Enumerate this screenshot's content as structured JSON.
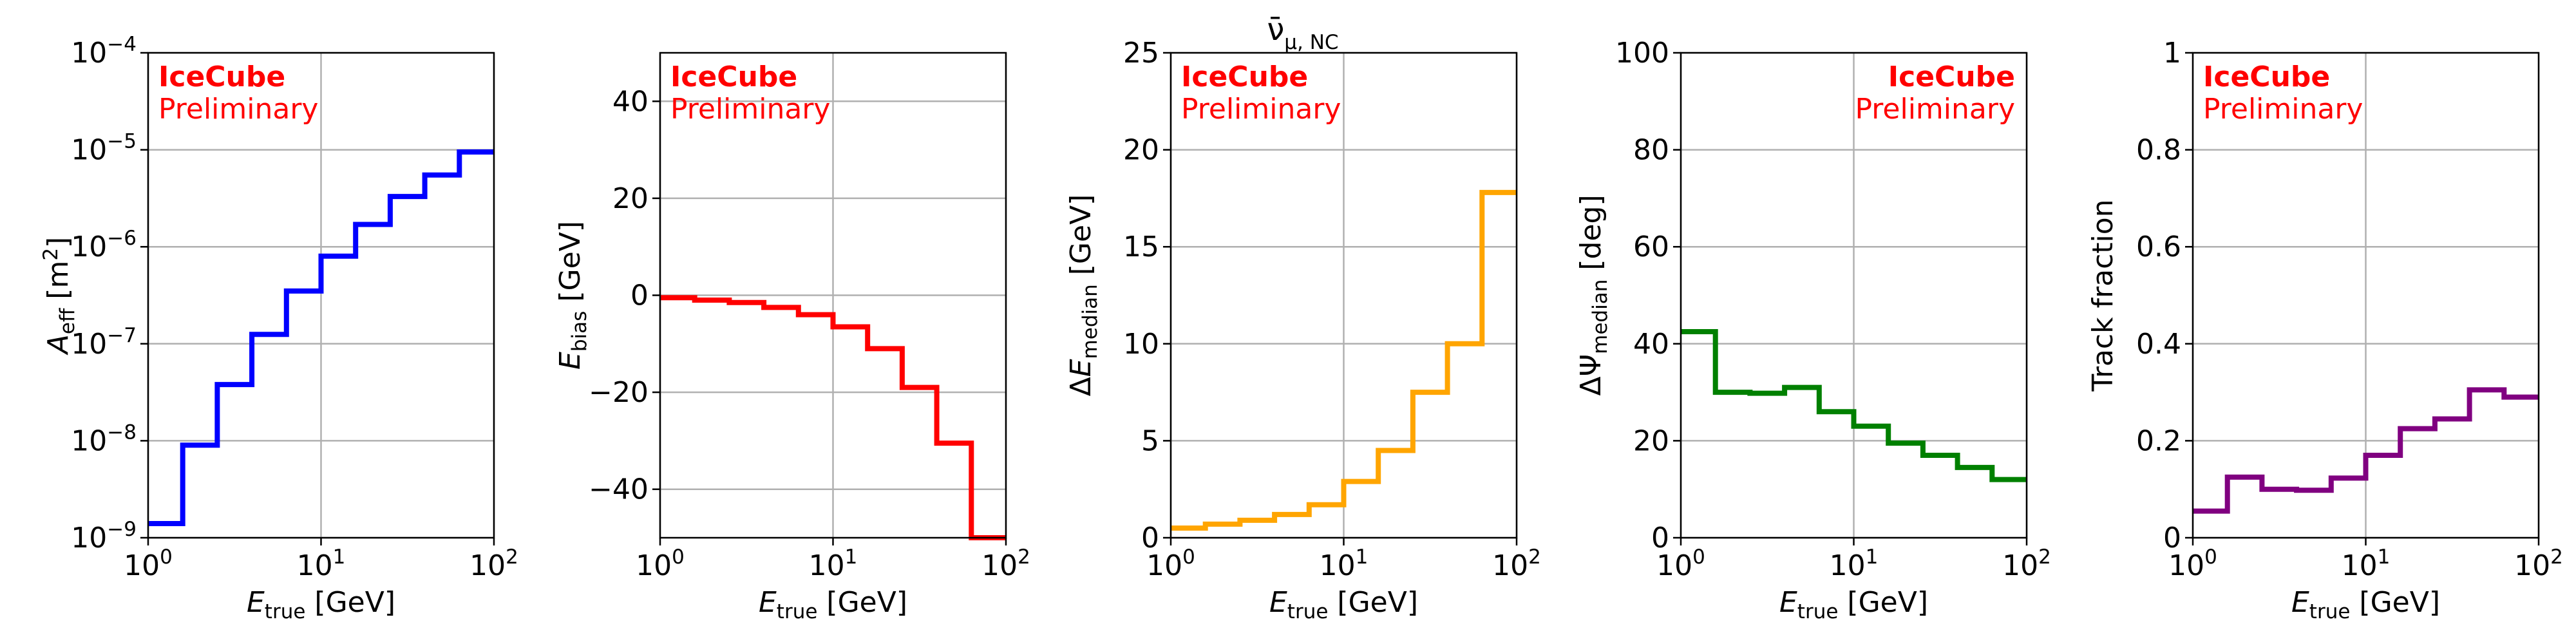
{
  "figure": {
    "title": "ν̄μ,NC",
    "title_base": "ν̄",
    "title_sub": "μ, NC"
  },
  "chart_data": [
    {
      "type": "line",
      "step": true,
      "xscale": "log",
      "yscale": "log",
      "xlim": [
        1,
        100
      ],
      "ylim": [
        1e-09,
        0.0001
      ],
      "xlabel": "E_true [GeV]",
      "ylabel": "A_eff [m²]",
      "color": "#0000ff",
      "grid": true,
      "watermark": {
        "line1": "IceCube",
        "line2": "Preliminary",
        "position": "top-left"
      },
      "xtick_values": [
        1,
        10,
        100
      ],
      "ytick_values": [
        1e-09,
        1e-08,
        1e-07,
        1e-06,
        1e-05,
        0.0001
      ],
      "bin_edges": [
        1,
        1.585,
        2.512,
        3.981,
        6.31,
        10,
        15.85,
        25.12,
        39.81,
        63.1,
        100
      ],
      "values": [
        1.4e-09,
        9e-09,
        3.8e-08,
        1.25e-07,
        3.5e-07,
        8e-07,
        1.7e-06,
        3.3e-06,
        5.5e-06,
        9.5e-06
      ]
    },
    {
      "type": "line",
      "step": true,
      "xscale": "log",
      "yscale": "linear",
      "xlim": [
        1,
        100
      ],
      "ylim": [
        -50,
        50
      ],
      "xlabel": "E_true [GeV]",
      "ylabel": "E_bias [GeV]",
      "color": "#ff0000",
      "grid": true,
      "watermark": {
        "line1": "IceCube",
        "line2": "Preliminary",
        "position": "top-left"
      },
      "xtick_values": [
        1,
        10,
        100
      ],
      "ytick_values": [
        -40,
        -20,
        0,
        20,
        40
      ],
      "bin_edges": [
        1,
        1.585,
        2.512,
        3.981,
        6.31,
        10,
        15.85,
        25.12,
        39.81,
        63.1,
        100
      ],
      "values": [
        -0.5,
        -1,
        -1.5,
        -2.5,
        -4,
        -6.5,
        -11,
        -19,
        -30.5,
        -50
      ]
    },
    {
      "type": "line",
      "step": true,
      "xscale": "log",
      "yscale": "linear",
      "xlim": [
        1,
        100
      ],
      "ylim": [
        0,
        25
      ],
      "xlabel": "E_true [GeV]",
      "ylabel": "ΔE_median [GeV]",
      "color": "#ffa500",
      "grid": true,
      "watermark": {
        "line1": "IceCube",
        "line2": "Preliminary",
        "position": "top-left"
      },
      "xtick_values": [
        1,
        10,
        100
      ],
      "ytick_values": [
        0,
        5,
        10,
        15,
        20,
        25
      ],
      "bin_edges": [
        1,
        1.585,
        2.512,
        3.981,
        6.31,
        10,
        15.85,
        25.12,
        39.81,
        63.1,
        100
      ],
      "values": [
        0.5,
        0.7,
        0.9,
        1.2,
        1.7,
        2.9,
        4.5,
        7.5,
        10,
        17.8
      ]
    },
    {
      "type": "line",
      "step": true,
      "xscale": "log",
      "yscale": "linear",
      "xlim": [
        1,
        100
      ],
      "ylim": [
        0,
        100
      ],
      "xlabel": "E_true [GeV]",
      "ylabel": "ΔΨ_median [deg]",
      "color": "#008000",
      "grid": true,
      "watermark": {
        "line1": "IceCube",
        "line2": "Preliminary",
        "position": "top-right"
      },
      "xtick_values": [
        1,
        10,
        100
      ],
      "ytick_values": [
        0,
        20,
        40,
        60,
        80,
        100
      ],
      "bin_edges": [
        1,
        1.585,
        2.512,
        3.981,
        6.31,
        10,
        15.85,
        25.12,
        39.81,
        63.1,
        100
      ],
      "values": [
        42.5,
        30,
        29.8,
        31,
        26,
        23,
        19.5,
        17,
        14.5,
        12
      ]
    },
    {
      "type": "line",
      "step": true,
      "xscale": "log",
      "yscale": "linear",
      "xlim": [
        1,
        100
      ],
      "ylim": [
        0,
        1
      ],
      "xlabel": "E_true [GeV]",
      "ylabel": "Track fraction",
      "color": "#800080",
      "grid": true,
      "watermark": {
        "line1": "IceCube",
        "line2": "Preliminary",
        "position": "top-left"
      },
      "xtick_values": [
        1,
        10,
        100
      ],
      "ytick_values": [
        0,
        0.2,
        0.4,
        0.6,
        0.8,
        1
      ],
      "bin_edges": [
        1,
        1.585,
        2.512,
        3.981,
        6.31,
        10,
        15.85,
        25.12,
        39.81,
        63.1,
        100
      ],
      "values": [
        0.055,
        0.125,
        0.1,
        0.098,
        0.123,
        0.17,
        0.225,
        0.245,
        0.305,
        0.29
      ]
    }
  ]
}
